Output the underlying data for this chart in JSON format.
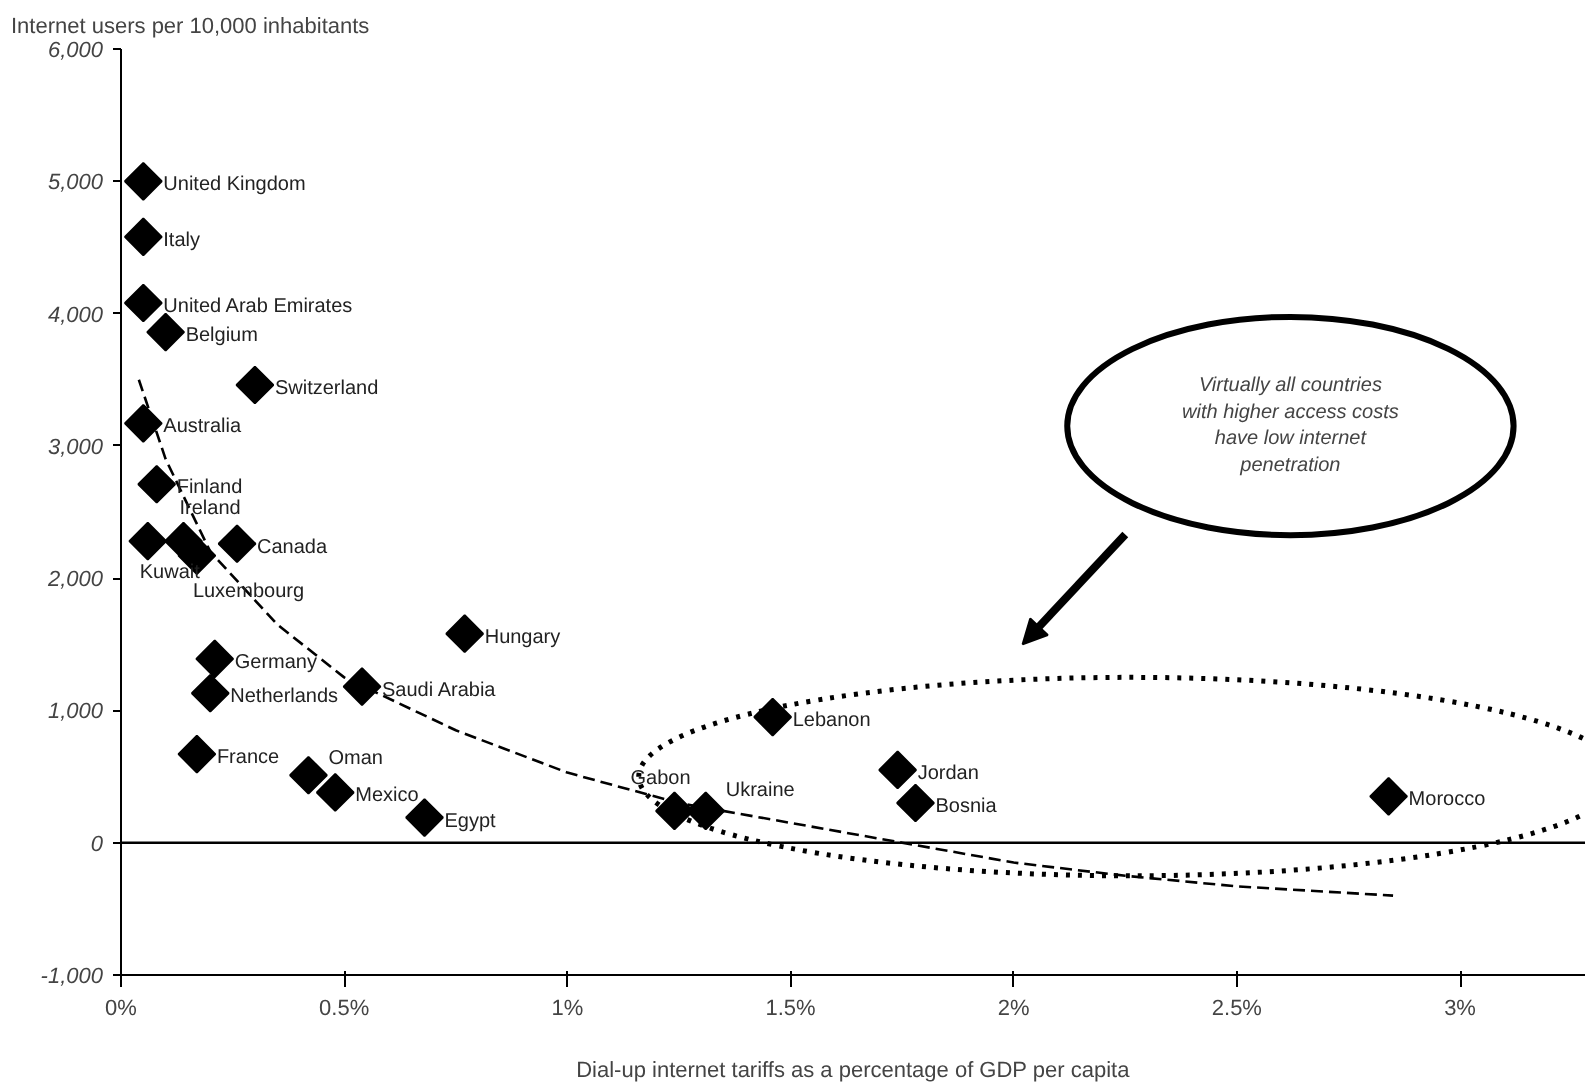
{
  "chart_data": {
    "type": "scatter",
    "ylabel": "Internet users per 10,000 inhabitants",
    "xlabel": "Dial-up internet tariffs as a percentage of GDP per capita",
    "marker": "diamond",
    "grid": false,
    "xlim": [
      0,
      3.28
    ],
    "ylim": [
      -1000,
      6000
    ],
    "xticks": [
      {
        "value": 0,
        "label": "0%"
      },
      {
        "value": 0.5,
        "label": "0.5%"
      },
      {
        "value": 1,
        "label": "1%"
      },
      {
        "value": 1.5,
        "label": "1.5%"
      },
      {
        "value": 2,
        "label": "2%"
      },
      {
        "value": 2.5,
        "label": "2.5%"
      },
      {
        "value": 3,
        "label": "3%"
      }
    ],
    "yticks": [
      {
        "value": -1000,
        "label": "-1,000"
      },
      0,
      {
        "value": 1000,
        "label": "1,000"
      },
      {
        "value": 2000,
        "label": "2,000"
      },
      {
        "value": 3000,
        "label": "3,000"
      },
      {
        "value": 4000,
        "label": "4,000"
      },
      {
        "value": 5000,
        "label": "5,000"
      },
      {
        "value": 6000,
        "label": "6,000"
      }
    ],
    "ref_lines": [
      {
        "axis": "y",
        "value": 0,
        "color": "#000000"
      }
    ],
    "series": [
      {
        "color": "#000000",
        "x": [
          0.05,
          0.05,
          0.05,
          0.1,
          0.3,
          0.05,
          0.08,
          0.06,
          0.14,
          0.17,
          0.26,
          0.77,
          0.21,
          0.2,
          0.54,
          0.17,
          0.42,
          0.48,
          0.68,
          1.46,
          1.24,
          1.31,
          1.74,
          1.78,
          2.84
        ],
        "values": [
          5000,
          4580,
          4080,
          3860,
          3460,
          3170,
          2710,
          2280,
          2280,
          2170,
          2260,
          1580,
          1390,
          1130,
          1180,
          670,
          510,
          380,
          190,
          950,
          240,
          240,
          550,
          300,
          350
        ]
      },
      {
        "type": "line",
        "color": "#000000",
        "marker": "none",
        "line_style": "dashed",
        "x": [
          0.04,
          0.1,
          0.2,
          0.35,
          0.5,
          0.75,
          1.0,
          1.25,
          1.5,
          1.75,
          2.0,
          2.25,
          2.5,
          2.85
        ],
        "values": [
          3500,
          2900,
          2200,
          1650,
          1250,
          850,
          530,
          300,
          150,
          0,
          -150,
          -250,
          -330,
          -400
        ]
      }
    ],
    "annotations": [
      {
        "text": "United Kingdom",
        "x": 0.05,
        "y": 5000
      },
      {
        "text": "Italy",
        "x": 0.05,
        "y": 4580
      },
      {
        "text": "United Arab Emirates",
        "x": 0.05,
        "y": 4080
      },
      {
        "text": "Belgium",
        "x": 0.1,
        "y": 3860
      },
      {
        "text": "Switzerland",
        "x": 0.3,
        "y": 3460
      },
      {
        "text": "Australia",
        "x": 0.05,
        "y": 3170
      },
      {
        "text": "Finland",
        "x": 0.08,
        "y": 2710
      },
      {
        "text": "Kuwait",
        "x": 0.06,
        "y": 2280
      },
      {
        "text": "Ireland",
        "x": 0.14,
        "y": 2280
      },
      {
        "text": "Luxembourg",
        "x": 0.17,
        "y": 2170
      },
      {
        "text": "Canada",
        "x": 0.26,
        "y": 2260
      },
      {
        "text": "Hungary",
        "x": 0.77,
        "y": 1580
      },
      {
        "text": "Germany",
        "x": 0.21,
        "y": 1390
      },
      {
        "text": "Netherlands",
        "x": 0.2,
        "y": 1130
      },
      {
        "text": "Saudi Arabia",
        "x": 0.54,
        "y": 1180
      },
      {
        "text": "France",
        "x": 0.17,
        "y": 670
      },
      {
        "text": "Oman",
        "x": 0.42,
        "y": 510
      },
      {
        "text": "Mexico",
        "x": 0.48,
        "y": 380
      },
      {
        "text": "Egypt",
        "x": 0.68,
        "y": 190
      },
      {
        "text": "Lebanon",
        "x": 1.46,
        "y": 950
      },
      {
        "text": "Gabon",
        "x": 1.24,
        "y": 240
      },
      {
        "text": "Ukraine",
        "x": 1.31,
        "y": 240
      },
      {
        "text": "Jordan",
        "x": 1.74,
        "y": 550
      },
      {
        "text": "Bosnia",
        "x": 1.78,
        "y": 300
      },
      {
        "text": "Morocco",
        "x": 2.84,
        "y": 350
      },
      "Virtually all countries with higher access costs have low internet penetration"
    ]
  }
}
